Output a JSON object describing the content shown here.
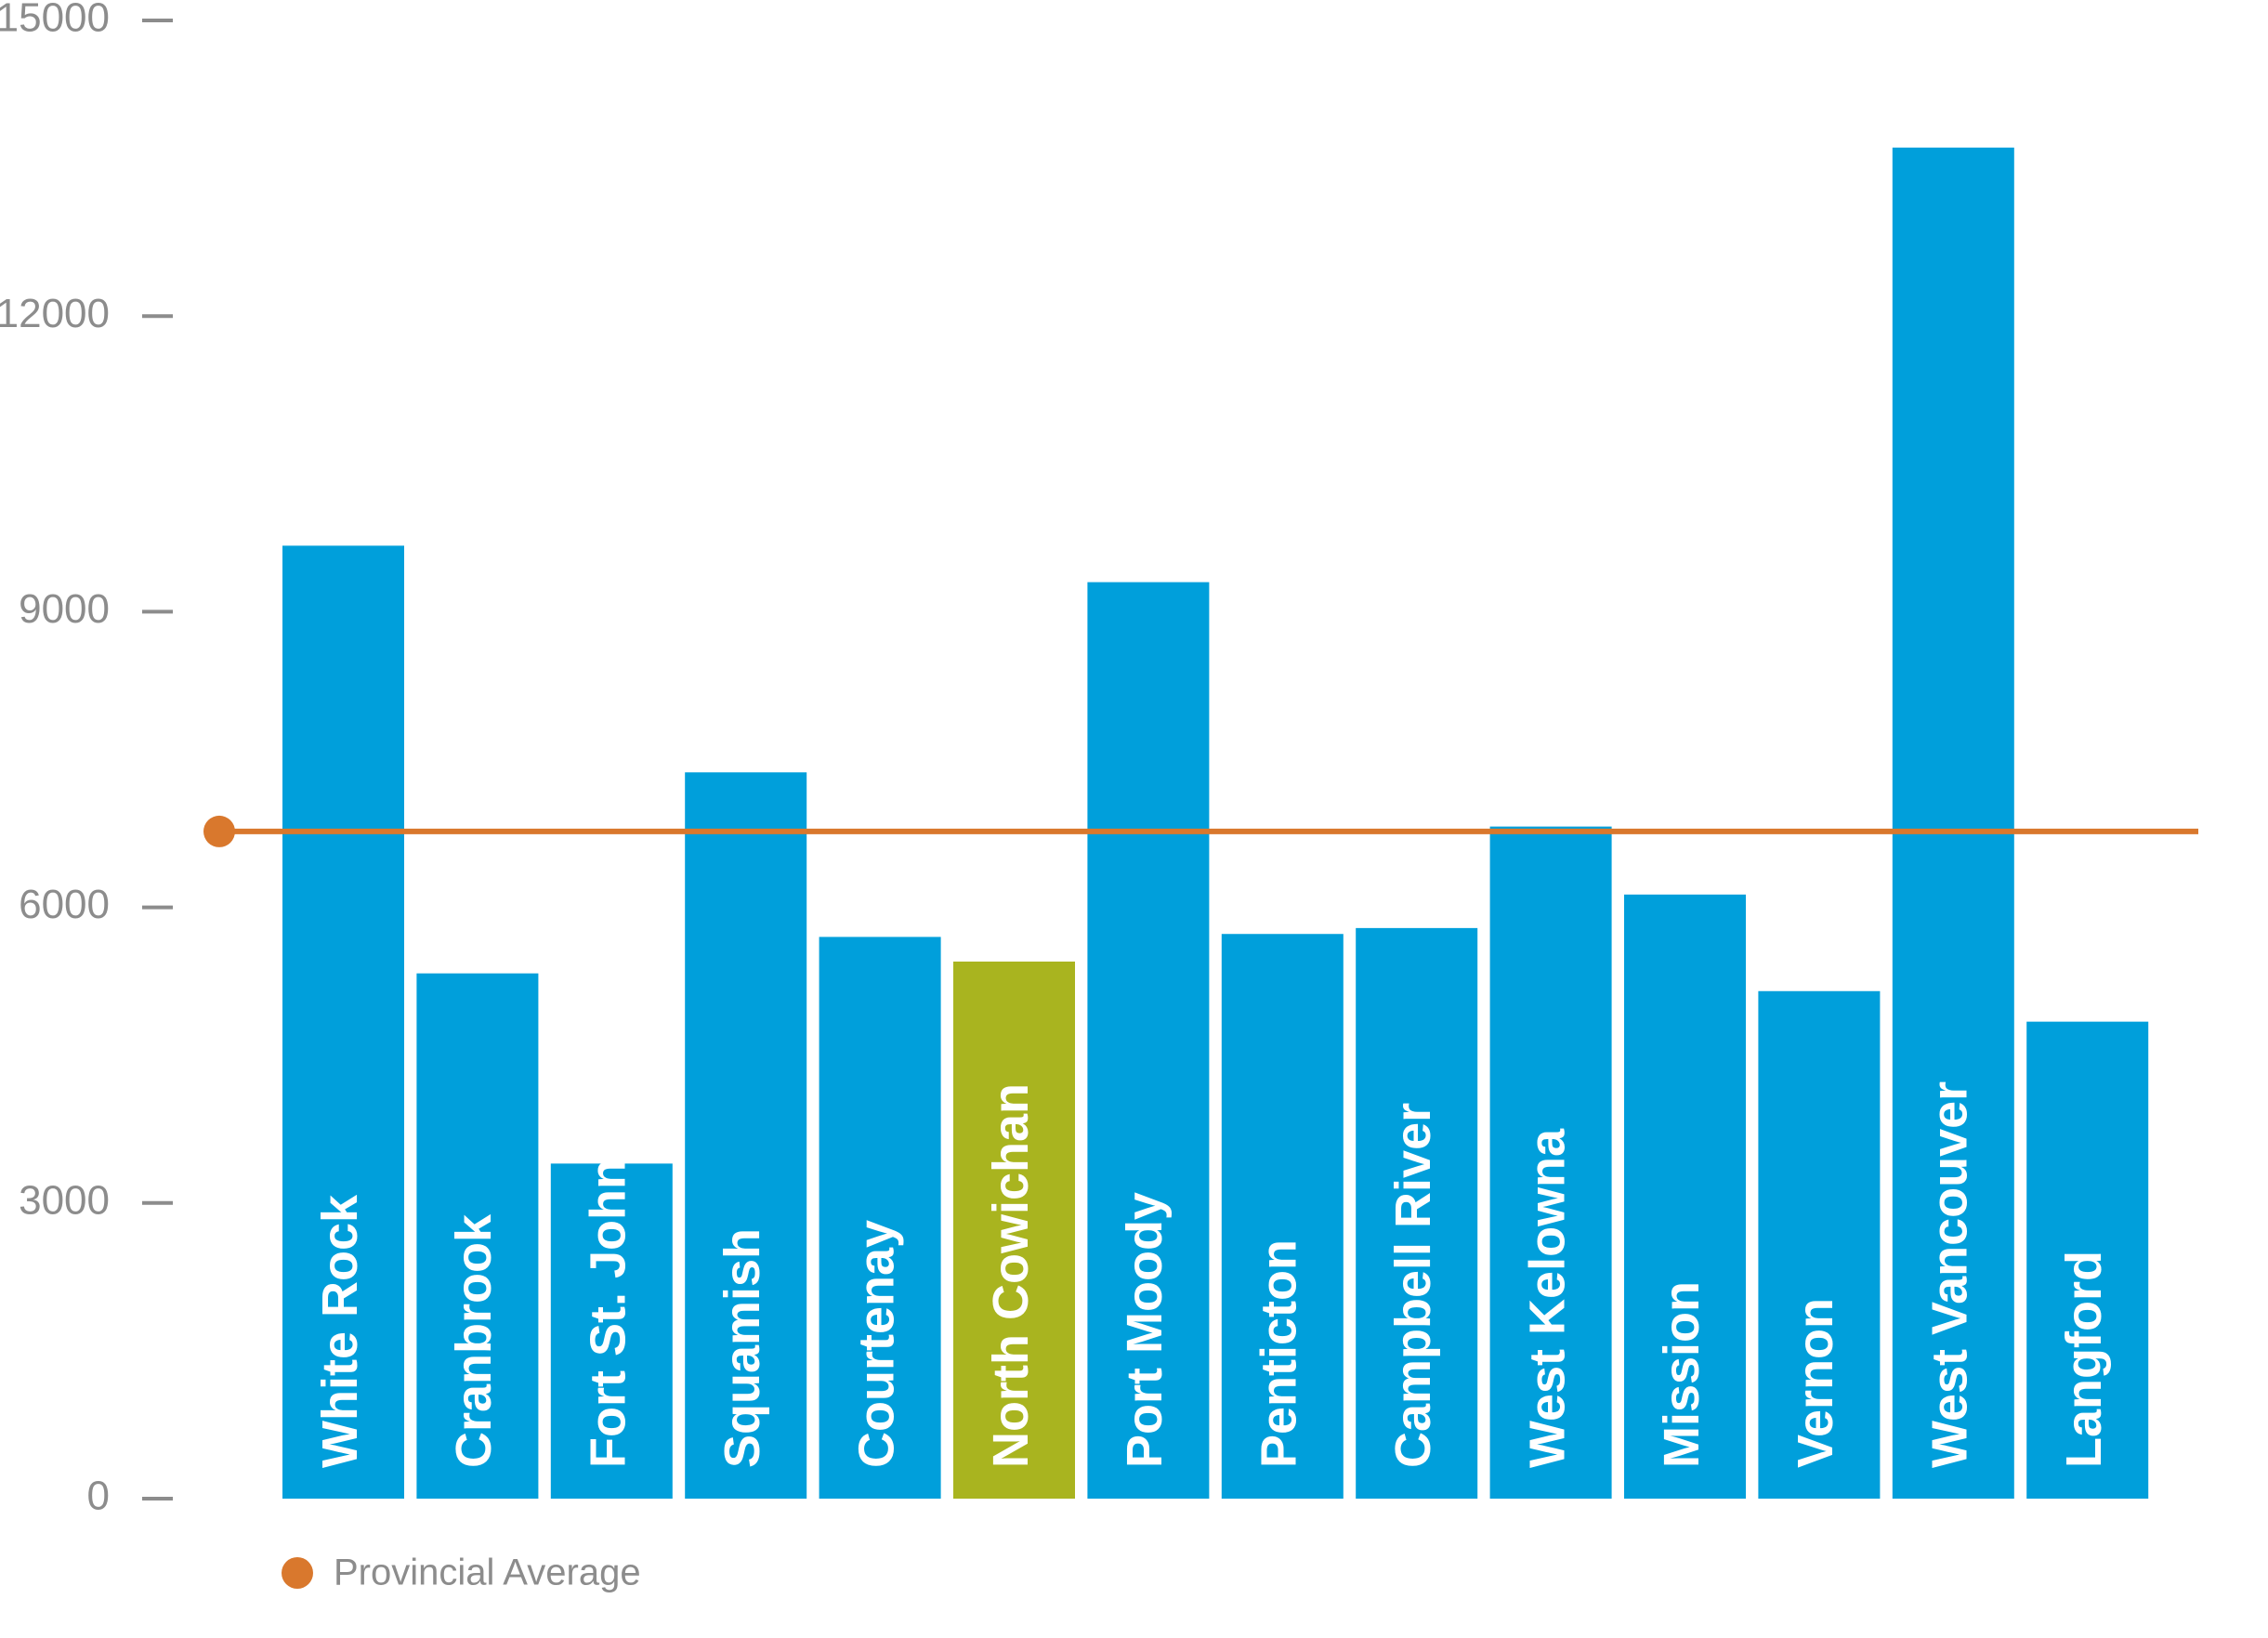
{
  "chart_data": {
    "type": "bar",
    "categories": [
      "White Rock",
      "Cranbrook",
      "Fort St. John",
      "Squamish",
      "Courtenay",
      "North Cowichan",
      "Port Moody",
      "Penticton",
      "Campbell River",
      "West Kelowna",
      "Mission",
      "Vernon",
      "West Vancouver",
      "Langford"
    ],
    "values": [
      9670,
      5330,
      3400,
      7370,
      5700,
      5450,
      9300,
      5730,
      5790,
      6820,
      6130,
      5150,
      13710,
      4840
    ],
    "colors": [
      "#009fdb",
      "#009fdb",
      "#009fdb",
      "#009fdb",
      "#009fdb",
      "#a9b41f",
      "#009fdb",
      "#009fdb",
      "#009fdb",
      "#009fdb",
      "#009fdb",
      "#009fdb",
      "#009fdb",
      "#009fdb"
    ],
    "average": {
      "name": "Provincial Average",
      "value": 6770,
      "color": "#d9782d"
    },
    "ylim": [
      0,
      15000
    ],
    "yticks": [
      0,
      3000,
      6000,
      9000,
      12000,
      15000
    ]
  }
}
